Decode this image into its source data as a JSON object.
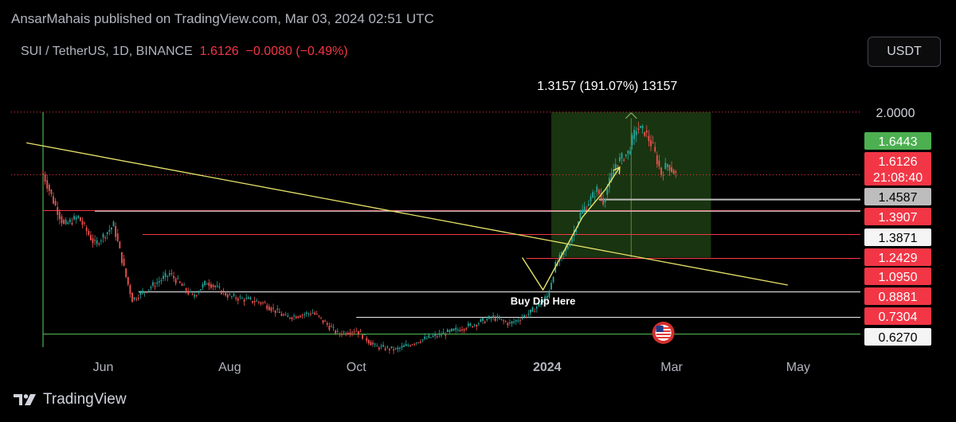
{
  "header": {
    "published_line": "AnsarMahais published on TradingView.com, Mar 03, 2024 02:51 UTC"
  },
  "symbol": {
    "name": "SUI / TetherUS, 1D, BINANCE",
    "last_price": "1.6126",
    "change": "−0.0080 (−0.49%)"
  },
  "currency_button": "USDT",
  "footer": {
    "brand": "TradingView"
  },
  "colors": {
    "background": "#000000",
    "up": "#26a69a",
    "down": "#ef5350",
    "support_red": "#f23645",
    "trendline": "#e8e36a",
    "level_white": "#e0e0e0",
    "projection_box": "#2e5e1e"
  },
  "chart_data": {
    "type": "candlestick",
    "symbol": "SUI / TetherUS",
    "timeframe": "1D",
    "exchange": "BINANCE",
    "ylim": [
      0.55,
      2.15
    ],
    "x_axis_ticks": [
      "Jun",
      "Aug",
      "Oct",
      "2024",
      "Mar",
      "May"
    ],
    "series": [
      {
        "name": "SUI/USDT",
        "price_path": [
          {
            "date": "2023-05-03",
            "price": 1.62
          },
          {
            "date": "2023-05-08",
            "price": 1.45
          },
          {
            "date": "2023-05-13",
            "price": 1.3
          },
          {
            "date": "2023-05-20",
            "price": 1.35
          },
          {
            "date": "2023-05-28",
            "price": 1.18
          },
          {
            "date": "2023-06-06",
            "price": 1.3
          },
          {
            "date": "2023-06-12",
            "price": 0.98
          },
          {
            "date": "2023-06-15",
            "price": 0.84
          },
          {
            "date": "2023-06-24",
            "price": 0.92
          },
          {
            "date": "2023-07-03",
            "price": 1.0
          },
          {
            "date": "2023-07-14",
            "price": 0.86
          },
          {
            "date": "2023-07-21",
            "price": 0.95
          },
          {
            "date": "2023-08-01",
            "price": 0.86
          },
          {
            "date": "2023-08-17",
            "price": 0.82
          },
          {
            "date": "2023-08-28",
            "price": 0.73
          },
          {
            "date": "2023-09-10",
            "price": 0.76
          },
          {
            "date": "2023-09-22",
            "price": 0.63
          },
          {
            "date": "2023-10-01",
            "price": 0.65
          },
          {
            "date": "2023-10-10",
            "price": 0.55
          },
          {
            "date": "2023-10-20",
            "price": 0.53
          },
          {
            "date": "2023-11-01",
            "price": 0.59
          },
          {
            "date": "2023-11-15",
            "price": 0.64
          },
          {
            "date": "2023-11-25",
            "price": 0.68
          },
          {
            "date": "2023-12-06",
            "price": 0.73
          },
          {
            "date": "2023-12-14",
            "price": 0.69
          },
          {
            "date": "2023-12-24",
            "price": 0.76
          },
          {
            "date": "2024-01-01",
            "price": 0.86
          },
          {
            "date": "2024-01-05",
            "price": 1.05
          },
          {
            "date": "2024-01-12",
            "price": 1.2
          },
          {
            "date": "2024-01-17",
            "price": 1.37
          },
          {
            "date": "2024-01-25",
            "price": 1.52
          },
          {
            "date": "2024-01-28",
            "price": 1.45
          },
          {
            "date": "2024-02-03",
            "price": 1.68
          },
          {
            "date": "2024-02-09",
            "price": 1.75
          },
          {
            "date": "2024-02-13",
            "price": 1.9
          },
          {
            "date": "2024-02-17",
            "price": 1.88
          },
          {
            "date": "2024-02-21",
            "price": 1.78
          },
          {
            "date": "2024-02-25",
            "price": 1.62
          },
          {
            "date": "2024-02-28",
            "price": 1.68
          },
          {
            "date": "2024-03-03",
            "price": 1.6126
          }
        ]
      }
    ],
    "price_scale_labels": [
      {
        "value": 2.0,
        "label": "2.0000",
        "style": "plain"
      },
      {
        "value": 1.6443,
        "label": "1.6443",
        "style": "green"
      },
      {
        "value": 1.6126,
        "label": "1.6126",
        "sublabel": "21:08:40",
        "style": "red"
      },
      {
        "value": 1.4587,
        "label": "1.4587",
        "style": "gray"
      },
      {
        "value": 1.3907,
        "label": "1.3907",
        "style": "red"
      },
      {
        "value": 1.3871,
        "label": "1.3871",
        "style": "white"
      },
      {
        "value": 1.2429,
        "label": "1.2429",
        "style": "red"
      },
      {
        "value": 1.095,
        "label": "1.0950",
        "style": "red"
      },
      {
        "value": 0.8881,
        "label": "0.8881",
        "style": "red"
      },
      {
        "value": 0.7304,
        "label": "0.7304",
        "style": "red"
      },
      {
        "value": 0.627,
        "label": "0.6270",
        "style": "white"
      }
    ],
    "horizontal_levels": [
      {
        "value": 1.3907,
        "start": "2023-05-03",
        "color": "red"
      },
      {
        "value": 1.3871,
        "start": "2023-05-28",
        "color": "white"
      },
      {
        "value": 1.2429,
        "start": "2023-06-20",
        "color": "red"
      },
      {
        "value": 1.095,
        "start": "2023-12-22",
        "color": "red"
      },
      {
        "value": 0.8881,
        "start": "2023-06-18",
        "color": "white"
      },
      {
        "value": 0.7304,
        "start": "2023-10-01",
        "color": "white"
      },
      {
        "value": 1.4587,
        "start": "2024-01-26",
        "color": "gray"
      },
      {
        "value": 0.627,
        "start": "2023-05-03",
        "color": "green"
      }
    ],
    "trendline": {
      "start": [
        "2023-04-25",
        1.81
      ],
      "end": [
        "2024-04-26",
        0.93
      ]
    },
    "projection": {
      "box": {
        "x_start": "2024-01-03",
        "x_end": "2024-03-20",
        "y_low": 1.1,
        "y_high": 2.0
      },
      "label": "1.3157 (191.07%) 13157"
    },
    "annotation": {
      "text": "Buy Dip Here",
      "date": "2023-12-30",
      "price": 0.83
    },
    "arrow_path": [
      {
        "date": "2023-12-20",
        "price": 1.1
      },
      {
        "date": "2023-12-30",
        "price": 0.9
      },
      {
        "date": "2024-01-18",
        "price": 1.35
      },
      {
        "date": "2024-01-29",
        "price": 1.52
      },
      {
        "date": "2024-02-05",
        "price": 1.66
      }
    ],
    "event_marker": {
      "date": "2024-02-26",
      "price": 0.6,
      "icon": "us-flag-icon"
    }
  }
}
